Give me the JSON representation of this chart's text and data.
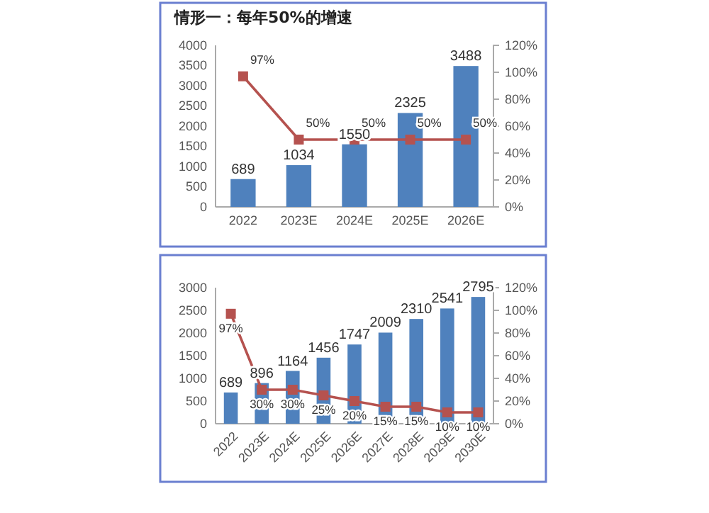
{
  "chart_data": [
    {
      "type": "bar",
      "title": "情形一：每年50%的增速",
      "categories": [
        "2022",
        "2023E",
        "2024E",
        "2025E",
        "2026E"
      ],
      "series": [
        {
          "color": "#4f81bd",
          "values": [
            689,
            1034,
            1550,
            2325,
            3488
          ]
        },
        {
          "type": "line",
          "axis": "y2",
          "color": "#b5524f",
          "values": [
            97,
            50,
            50,
            50,
            50
          ],
          "value_labels": [
            "97%",
            "50%",
            "50%",
            "50%",
            "50%"
          ]
        }
      ],
      "ylim": [
        0,
        4000
      ],
      "yticks": [
        0,
        500,
        1000,
        1500,
        2000,
        2500,
        3000,
        3500,
        4000
      ],
      "y2lim": [
        0,
        120
      ],
      "y2ticks": [
        {
          "value": 0,
          "label": "0%"
        },
        {
          "value": 20,
          "label": "20%"
        },
        {
          "value": 40,
          "label": "40%"
        },
        {
          "value": 60,
          "label": "60%"
        },
        {
          "value": 80,
          "label": "80%"
        },
        {
          "value": 100,
          "label": "100%"
        },
        {
          "value": 120,
          "label": "120%"
        }
      ],
      "data_labels": true,
      "marker": "square",
      "grid": false,
      "legend": false
    },
    {
      "type": "bar",
      "categories": [
        "2022",
        "2023E",
        "2024E",
        "2025E",
        "2026E",
        "2027E",
        "2028E",
        "2029E",
        "2030E"
      ],
      "series": [
        {
          "color": "#4f81bd",
          "values": [
            689,
            896,
            1164,
            1456,
            1747,
            2009,
            2310,
            2541,
            2795
          ]
        },
        {
          "type": "line",
          "axis": "y2",
          "color": "#b5524f",
          "values": [
            97,
            30,
            30,
            25,
            20,
            15,
            15,
            10,
            10
          ],
          "value_labels": [
            "97%",
            "30%",
            "30%",
            "25%",
            "20%",
            "15%",
            "15%",
            "10%",
            "10%"
          ]
        }
      ],
      "ylim": [
        0,
        3000
      ],
      "yticks": [
        0,
        500,
        1000,
        1500,
        2000,
        2500,
        3000
      ],
      "y2lim": [
        0,
        120
      ],
      "y2ticks": [
        {
          "value": 0,
          "label": "0%"
        },
        {
          "value": 20,
          "label": "20%"
        },
        {
          "value": 40,
          "label": "40%"
        },
        {
          "value": 60,
          "label": "60%"
        },
        {
          "value": 80,
          "label": "80%"
        },
        {
          "value": 100,
          "label": "100%"
        },
        {
          "value": 120,
          "label": "120%"
        }
      ],
      "data_labels": true,
      "marker": "square",
      "grid": false,
      "legend": false
    }
  ]
}
